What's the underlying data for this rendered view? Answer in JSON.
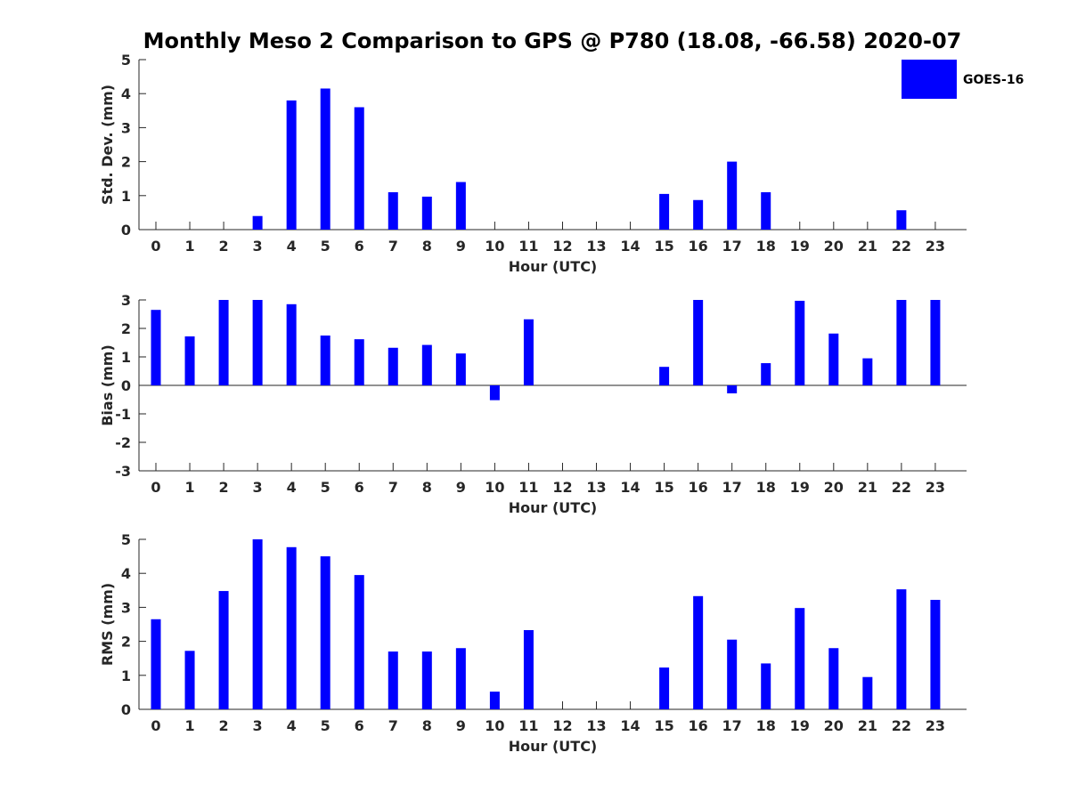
{
  "figure": {
    "title": "Monthly Meso 2 Comparison to GPS @ P780 (18.08, -66.58) 2020-07"
  },
  "legend": {
    "label": "GOES-16",
    "color": "#0000FF",
    "placement": "top-right"
  },
  "chart_data": [
    {
      "type": "bar",
      "title": "Std. Dev.",
      "xlabel": "Hour (UTC)",
      "ylabel": "Std. Dev. (mm)",
      "categories": [
        "0",
        "1",
        "2",
        "3",
        "4",
        "5",
        "6",
        "7",
        "8",
        "9",
        "10",
        "11",
        "12",
        "13",
        "14",
        "15",
        "16",
        "17",
        "18",
        "19",
        "20",
        "21",
        "22",
        "23"
      ],
      "yticks": [
        "0",
        "1",
        "2",
        "3",
        "4",
        "5"
      ],
      "ylim": [
        0,
        5
      ],
      "series": [
        {
          "name": "GOES-16",
          "color": "#0000FF",
          "values": [
            0,
            0,
            0,
            0.4,
            3.8,
            4.15,
            3.6,
            1.1,
            0.97,
            1.4,
            0,
            0,
            0,
            0,
            0,
            1.05,
            0.87,
            2.0,
            1.1,
            0,
            0,
            0,
            0.57,
            0
          ]
        }
      ]
    },
    {
      "type": "bar",
      "title": "Bias",
      "xlabel": "Hour (UTC)",
      "ylabel": "Bias (mm)",
      "categories": [
        "0",
        "1",
        "2",
        "3",
        "4",
        "5",
        "6",
        "7",
        "8",
        "9",
        "10",
        "11",
        "12",
        "13",
        "14",
        "15",
        "16",
        "17",
        "18",
        "19",
        "20",
        "21",
        "22",
        "23"
      ],
      "yticks": [
        "-3",
        "-2",
        "-1",
        "0",
        "1",
        "2",
        "3"
      ],
      "ylim": [
        -3,
        3
      ],
      "zero_line": true,
      "series": [
        {
          "name": "GOES-16",
          "color": "#0000FF",
          "values": [
            2.65,
            1.72,
            3.0,
            3.0,
            2.85,
            1.75,
            1.62,
            1.32,
            1.42,
            1.12,
            -0.52,
            2.32,
            0,
            0,
            0,
            0.65,
            3.0,
            -0.28,
            0.78,
            2.97,
            1.82,
            0.95,
            3.0,
            3.0
          ]
        }
      ]
    },
    {
      "type": "bar",
      "title": "RMS",
      "xlabel": "Hour (UTC)",
      "ylabel": "RMS (mm)",
      "categories": [
        "0",
        "1",
        "2",
        "3",
        "4",
        "5",
        "6",
        "7",
        "8",
        "9",
        "10",
        "11",
        "12",
        "13",
        "14",
        "15",
        "16",
        "17",
        "18",
        "19",
        "20",
        "21",
        "22",
        "23"
      ],
      "yticks": [
        "0",
        "1",
        "2",
        "3",
        "4",
        "5"
      ],
      "ylim": [
        0,
        5
      ],
      "series": [
        {
          "name": "GOES-16",
          "color": "#0000FF",
          "values": [
            2.65,
            1.72,
            3.48,
            5.0,
            4.77,
            4.5,
            3.95,
            1.7,
            1.7,
            1.8,
            0.52,
            2.33,
            0,
            0,
            0,
            1.23,
            3.33,
            2.05,
            1.35,
            2.98,
            1.8,
            0.95,
            3.53,
            3.22
          ]
        }
      ]
    }
  ]
}
